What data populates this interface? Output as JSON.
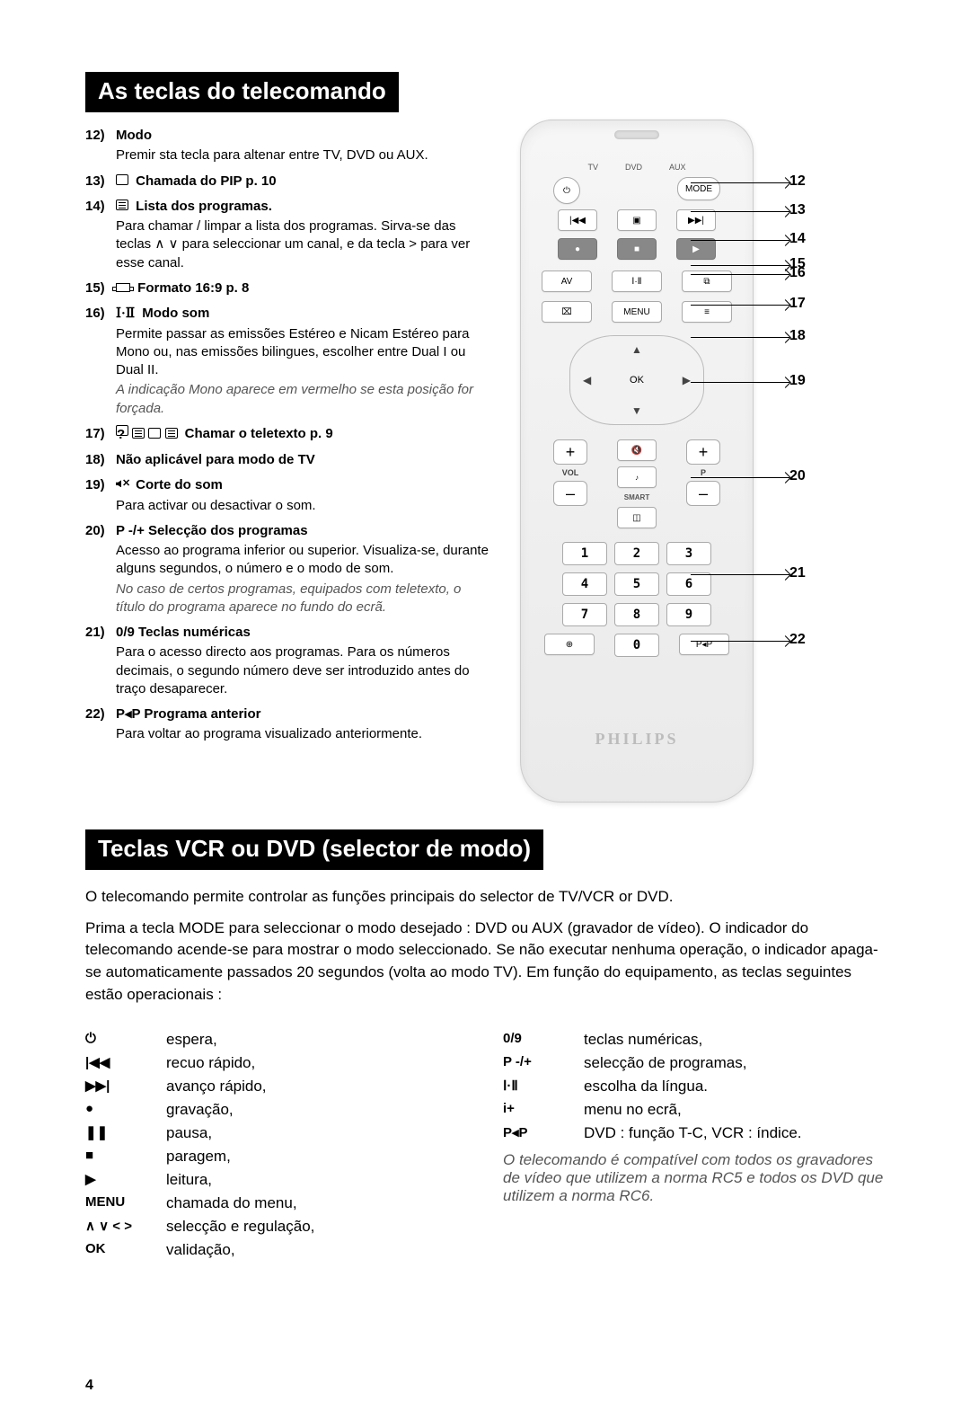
{
  "page_number": "4",
  "section1": {
    "title": "As teclas do telecomando",
    "items": [
      {
        "num": "12)",
        "title": "Modo",
        "desc": "Premir sta tecla para altenar entre TV, DVD ou AUX."
      },
      {
        "num": "13)",
        "icon": "pip",
        "title": "Chamada do PIP p. 10"
      },
      {
        "num": "14)",
        "icon": "list",
        "title": "Lista dos programas.",
        "desc": "Para chamar / limpar a lista dos programas. Sirva-se das teclas ∧ ∨ para seleccionar um canal, e da tecla > para ver esse canal."
      },
      {
        "num": "15)",
        "icon": "format",
        "title": "Formato 16:9 p. 8"
      },
      {
        "num": "16)",
        "icon": "i-ii",
        "title": "Modo som",
        "desc": "Permite passar as emissões Estéreo e Nicam Estéreo para Mono ou, nas emissões bilingues, escolher entre Dual I ou Dual II.",
        "italic": "A indicação Mono aparece em vermelho se esta posição for forçada."
      },
      {
        "num": "17)",
        "icon": "ttx",
        "title": "Chamar o teletexto p. 9"
      },
      {
        "num": "18)",
        "title": "Não aplicável para modo de TV"
      },
      {
        "num": "19)",
        "icon": "mute",
        "title": "Corte do som",
        "desc": "Para activar ou desactivar o som."
      },
      {
        "num": "20)",
        "title": "P -/+  Selecção dos programas",
        "desc": "Acesso ao programa inferior ou superior. Visualiza-se, durante alguns segundos, o número e o modo de som.",
        "italic": "No caso de certos programas, equipados com teletexto, o título do programa aparece no fundo do ecrã."
      },
      {
        "num": "21)",
        "title": "0/9 Teclas numéricas",
        "desc": "Para o acesso directo aos programas. Para os números decimais, o segundo número deve ser introduzido antes do traço desaparecer."
      },
      {
        "num": "22)",
        "title": "P◂P  Programa anterior",
        "desc": "Para voltar ao programa visualizado anteriormente."
      }
    ]
  },
  "remote": {
    "brand": "PHILIPS",
    "modes": [
      "TV",
      "DVD",
      "AUX"
    ],
    "mode_label": "MODE",
    "av": "AV",
    "iii": "Ⅰ·Ⅱ",
    "menu": "MENU",
    "ok": "OK",
    "vol": "VOL",
    "p": "P",
    "smart": "SMART",
    "numbers": [
      "1",
      "2",
      "3",
      "4",
      "5",
      "6",
      "7",
      "8",
      "9",
      "",
      "0",
      ""
    ],
    "bottom_left": "⊕",
    "bottom_right": "P◂P",
    "callouts": [
      "12",
      "13",
      "14",
      "15",
      "16",
      "17",
      "18",
      "19",
      "20",
      "21",
      "22"
    ]
  },
  "section2": {
    "title": "Teclas VCR ou DVD (selector de modo)",
    "p1": "O telecomando permite controlar as funções principais do selector de TV/VCR or DVD.",
    "p2": "Prima a tecla MODE para seleccionar o modo desejado : DVD ou AUX (gravador de vídeo). O indicador do telecomando acende-se para mostrar o modo seleccionado. Se não executar nenhuma operação, o indicador apaga-se automaticamente passados 20 segundos (volta ao modo TV). Em função do equipamento, as teclas seguintes estão operacionais :",
    "left": [
      {
        "sym": "⏻",
        "txt": "espera,"
      },
      {
        "sym": "|◀◀",
        "txt": "recuo rápido,"
      },
      {
        "sym": "▶▶|",
        "txt": "avanço rápido,"
      },
      {
        "sym": "●",
        "txt": "gravação,"
      },
      {
        "sym": "❚❚",
        "txt": "pausa,"
      },
      {
        "sym": "■",
        "txt": "paragem,"
      },
      {
        "sym": "▶",
        "txt": "leitura,"
      },
      {
        "sym": "MENU",
        "txt": "chamada do menu,"
      },
      {
        "sym": "∧ ∨ < >",
        "txt": "selecção e regulação,"
      },
      {
        "sym": "OK",
        "txt": "validação,"
      }
    ],
    "right": [
      {
        "sym": "0/9",
        "txt": "teclas numéricas,"
      },
      {
        "sym": "P -/+",
        "txt": "selecção de programas,"
      },
      {
        "sym": "Ⅰ·Ⅱ",
        "txt": "escolha da língua."
      },
      {
        "sym": "i+",
        "txt": "menu no ecrã,"
      },
      {
        "sym": "P◂P",
        "txt": "DVD : função T-C, VCR : índice."
      }
    ],
    "italic": "O telecomando é compatível com todos os gravadores de vídeo que utilizem a norma RC5 e todos os DVD que utilizem a norma RC6."
  }
}
